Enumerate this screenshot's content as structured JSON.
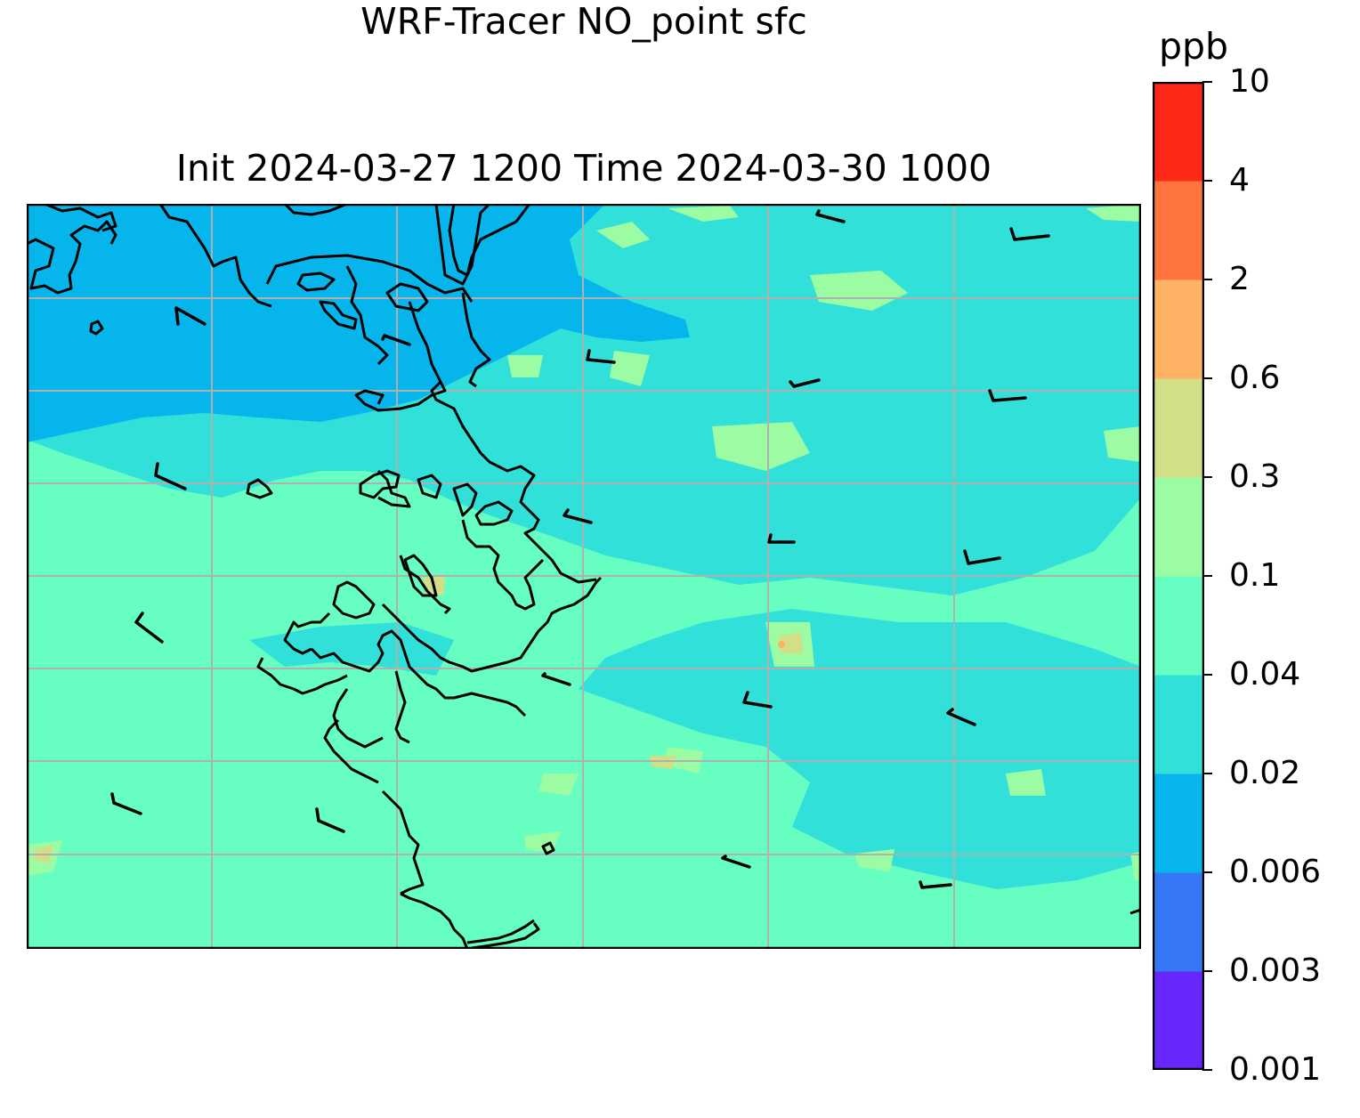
{
  "title_line1": "WRF-Tracer NO_point sfc",
  "title_line2": "Init 2024-03-27 1200 Time 2024-03-30 1000",
  "colorbar": {
    "unit": "ppb",
    "levels": [
      "0.001",
      "0.003",
      "0.006",
      "0.02",
      "0.04",
      "0.1",
      "0.3",
      "0.6",
      "2",
      "4",
      "10"
    ],
    "colors": [
      "#6726fb",
      "#3677f5",
      "#06b5ec",
      "#31e0d8",
      "#67fec1",
      "#9cfca4",
      "#d2df86",
      "#feb264",
      "#fe733e",
      "#fe2918"
    ]
  },
  "map": {
    "field_colors": {
      "deep_blue": "#06b5ec",
      "cyan": "#31e0d8",
      "aqua_green": "#67fec1",
      "light_green": "#9cfca4",
      "khaki": "#d2df86",
      "orange": "#feb264"
    },
    "gridlines": "on",
    "coastlines": "on",
    "wind_barbs": "on"
  }
}
